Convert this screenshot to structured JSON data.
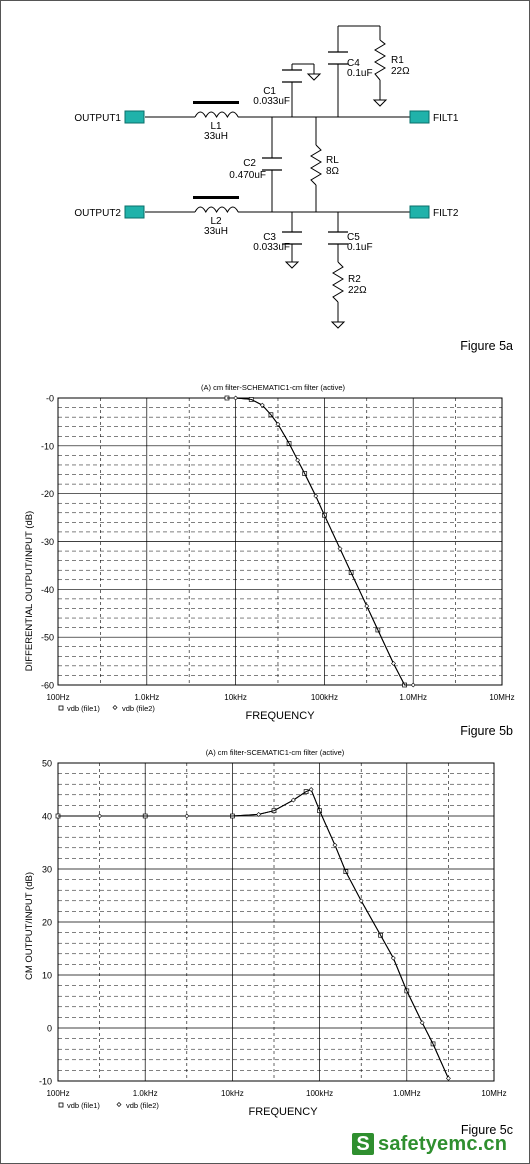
{
  "schematic": {
    "figure_label": "Figure 5a",
    "ports": {
      "output1": "OUTPUT1",
      "output2": "OUTPUT2",
      "filt1": "FILT1",
      "filt2": "FILT2"
    },
    "components": {
      "L1": {
        "name": "L1",
        "value": "33uH"
      },
      "L2": {
        "name": "L2",
        "value": "33uH"
      },
      "C1": {
        "name": "C1",
        "value": "0.033uF"
      },
      "C2": {
        "name": "C2",
        "value": "0.470uF"
      },
      "C3": {
        "name": "C3",
        "value": "0.033uF"
      },
      "C4": {
        "name": "C4",
        "value": "0.1uF"
      },
      "C5": {
        "name": "C5",
        "value": "0.1uF"
      },
      "R1": {
        "name": "R1",
        "value": "22Ω"
      },
      "R2": {
        "name": "R2",
        "value": "22Ω"
      },
      "RL": {
        "name": "RL",
        "value": "8Ω"
      }
    },
    "colors": {
      "port": "#20b2aa",
      "wire": "#000000"
    }
  },
  "chart_data": [
    {
      "type": "line",
      "figure_label": "Figure 5b",
      "title": "(A) cm filter-SCHEMATIC1-cm filter (active)",
      "xlabel": "FREQUENCY",
      "ylabel": "DIFFERENTIAL OUTPUT/INPUT (dB)",
      "xscale": "log",
      "xlim": [
        100,
        10000000
      ],
      "ylim": [
        -60,
        0
      ],
      "x_tick_labels": [
        "100Hz",
        "1.0kHz",
        "10kHz",
        "100kHz",
        "1.0MHz",
        "10MHz"
      ],
      "y_tick_labels": [
        "-0",
        "-10",
        "-20",
        "-30",
        "-40",
        "-50",
        "-60"
      ],
      "grid": true,
      "legend": {
        "position": "bottom-left",
        "entries": [
          "vdb (file1)",
          "vdb (file2)"
        ]
      },
      "series": [
        {
          "name": "vdb (file1)",
          "x": [
            8000,
            10000,
            15000,
            20000,
            25000,
            30000,
            40000,
            50000,
            60000,
            80000,
            100000,
            150000,
            200000,
            300000,
            400000,
            600000,
            800000,
            1000000
          ],
          "y": [
            0,
            0,
            -0.3,
            -1.5,
            -3.5,
            -5.5,
            -9.5,
            -13,
            -15.8,
            -20.5,
            -24.5,
            -31.5,
            -36.5,
            -43.5,
            -48.5,
            -55.5,
            -60,
            -60
          ]
        },
        {
          "name": "vdb (file2)",
          "x": [
            8000,
            10000,
            15000,
            20000,
            25000,
            30000,
            40000,
            50000,
            60000,
            80000,
            100000,
            150000,
            200000,
            300000,
            400000,
            600000,
            800000,
            1000000
          ],
          "y": [
            0,
            0,
            -0.3,
            -1.5,
            -3.5,
            -5.5,
            -9.5,
            -13,
            -15.8,
            -20.5,
            -24.5,
            -31.5,
            -36.5,
            -43.5,
            -48.5,
            -55.5,
            -60,
            -60
          ]
        }
      ]
    },
    {
      "type": "line",
      "figure_label": "Figure 5c",
      "title": "(A) cm filter-SCEMATIC1-cm filter (active)",
      "xlabel": "FREQUENCY",
      "ylabel": "CM OUTPUT/INPUT (dB)",
      "xscale": "log",
      "xlim": [
        100,
        10000000
      ],
      "ylim": [
        -10,
        50
      ],
      "x_tick_labels": [
        "100Hz",
        "1.0kHz",
        "10kHz",
        "100kHz",
        "1.0MHz",
        "10MHz"
      ],
      "y_tick_labels": [
        "50",
        "40",
        "30",
        "20",
        "10",
        "0",
        "-10"
      ],
      "grid": true,
      "legend": {
        "position": "bottom-left",
        "entries": [
          "vdb (file1)",
          "vdb (file2)"
        ]
      },
      "series": [
        {
          "name": "vdb (file1)",
          "x": [
            100,
            300,
            1000,
            3000,
            10000,
            20000,
            30000,
            50000,
            70000,
            80000,
            100000,
            150000,
            200000,
            300000,
            500000,
            700000,
            1000000,
            1500000,
            2000000,
            3000000
          ],
          "y": [
            40,
            40,
            40,
            40,
            40,
            40.3,
            41,
            43,
            44.6,
            45,
            41,
            34.5,
            29.5,
            24,
            17.5,
            13.2,
            7,
            1,
            -3,
            -9.5
          ]
        },
        {
          "name": "vdb (file2)",
          "x": [
            100,
            300,
            1000,
            3000,
            10000,
            20000,
            30000,
            50000,
            70000,
            80000,
            100000,
            150000,
            200000,
            300000,
            500000,
            700000,
            1000000,
            1500000,
            2000000,
            3000000
          ],
          "y": [
            40,
            40,
            40,
            40,
            40,
            40.3,
            41,
            43,
            44.6,
            45,
            41,
            34.5,
            29.5,
            24,
            17.5,
            13.2,
            7,
            1,
            -3,
            -9.5
          ]
        }
      ]
    }
  ],
  "watermark": {
    "icon_letter": "S",
    "text": "safetyemc.cn",
    "color": "#2f8f2f"
  }
}
